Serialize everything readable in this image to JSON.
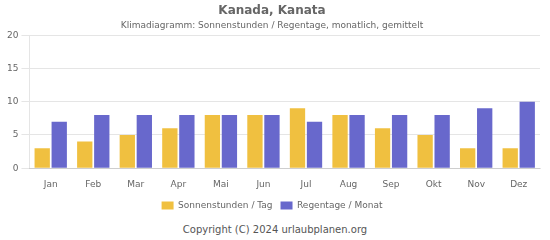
{
  "chart_data": {
    "type": "bar",
    "title": "Kanada, Kanata",
    "subtitle": "Klimadiagramm: Sonnenstunden / Regentage, monatlich, gemittelt",
    "categories": [
      "Jan",
      "Feb",
      "Mar",
      "Apr",
      "Mai",
      "Jun",
      "Jul",
      "Aug",
      "Sep",
      "Okt",
      "Nov",
      "Dez"
    ],
    "series": [
      {
        "name": "Sonnenstunden / Tag",
        "color": "#f0c040",
        "values": [
          3,
          4,
          5,
          6,
          8,
          8,
          9,
          8,
          6,
          5,
          3,
          3
        ]
      },
      {
        "name": "Regentage / Monat",
        "color": "#6868cc",
        "values": [
          7,
          8,
          8,
          8,
          8,
          8,
          7,
          8,
          8,
          8,
          9,
          10
        ]
      }
    ],
    "ylim": [
      0,
      20
    ],
    "yticks": [
      0,
      5,
      10,
      15,
      20
    ],
    "grid": true,
    "legend": "bottom",
    "annotations": [
      "Copyright (C) 2024 urlaubplanen.org"
    ]
  }
}
